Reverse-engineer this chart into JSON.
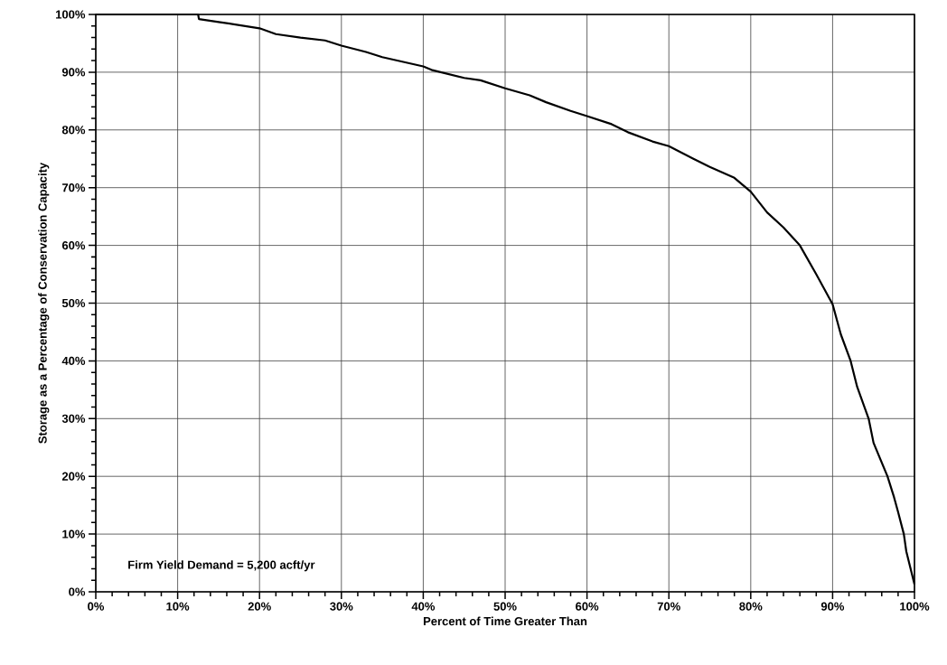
{
  "chart_data": {
    "type": "line",
    "xlabel": "Percent of Time Greater Than",
    "ylabel": "Storage as a Percentage of Conservation Capacity",
    "annotations": [
      "Firm Yield Demand = 5,200 acft/yr"
    ],
    "x": [
      0,
      12.5,
      12.6,
      15,
      20,
      22,
      25,
      28,
      30,
      33,
      35,
      40,
      41,
      45,
      47,
      50,
      53,
      55,
      58,
      60,
      63,
      65,
      68,
      70,
      73,
      75,
      78,
      80,
      82,
      84,
      86,
      88,
      90,
      91,
      92.2,
      93,
      94.4,
      95,
      96.7,
      97.5,
      98,
      98.7,
      99,
      100
    ],
    "series": [
      {
        "color": "#000000",
        "values": [
          100,
          100,
          99.2,
          98.7,
          97.6,
          96.6,
          96,
          95.5,
          94.6,
          93.5,
          92.6,
          91,
          90.4,
          89,
          88.6,
          87.2,
          86,
          84.8,
          83.3,
          82.4,
          81,
          79.6,
          78,
          77.2,
          75,
          73.6,
          71.7,
          69.3,
          65.7,
          63.1,
          60,
          55,
          49.8,
          44.6,
          40,
          35.5,
          30,
          25.8,
          20,
          16.4,
          13.8,
          10,
          7,
          1.3
        ]
      }
    ],
    "xlim": [
      0,
      100
    ],
    "ylim": [
      0,
      100
    ],
    "xticks": [
      {
        "value": 0,
        "label": "0%"
      },
      {
        "value": 10,
        "label": "10%"
      },
      {
        "value": 20,
        "label": "20%"
      },
      {
        "value": 30,
        "label": "30%"
      },
      {
        "value": 40,
        "label": "40%"
      },
      {
        "value": 50,
        "label": "50%"
      },
      {
        "value": 60,
        "label": "60%"
      },
      {
        "value": 70,
        "label": "70%"
      },
      {
        "value": 80,
        "label": "80%"
      },
      {
        "value": 90,
        "label": "90%"
      },
      {
        "value": 100,
        "label": "100%"
      }
    ],
    "yticks": [
      {
        "value": 0,
        "label": "0%"
      },
      {
        "value": 10,
        "label": "10%"
      },
      {
        "value": 20,
        "label": "20%"
      },
      {
        "value": 30,
        "label": "30%"
      },
      {
        "value": 40,
        "label": "40%"
      },
      {
        "value": 50,
        "label": "50%"
      },
      {
        "value": 60,
        "label": "60%"
      },
      {
        "value": 70,
        "label": "70%"
      },
      {
        "value": 80,
        "label": "80%"
      },
      {
        "value": 90,
        "label": "90%"
      },
      {
        "value": 100,
        "label": "100%"
      }
    ],
    "grid": true,
    "marker": "none",
    "line_style": "solid"
  }
}
